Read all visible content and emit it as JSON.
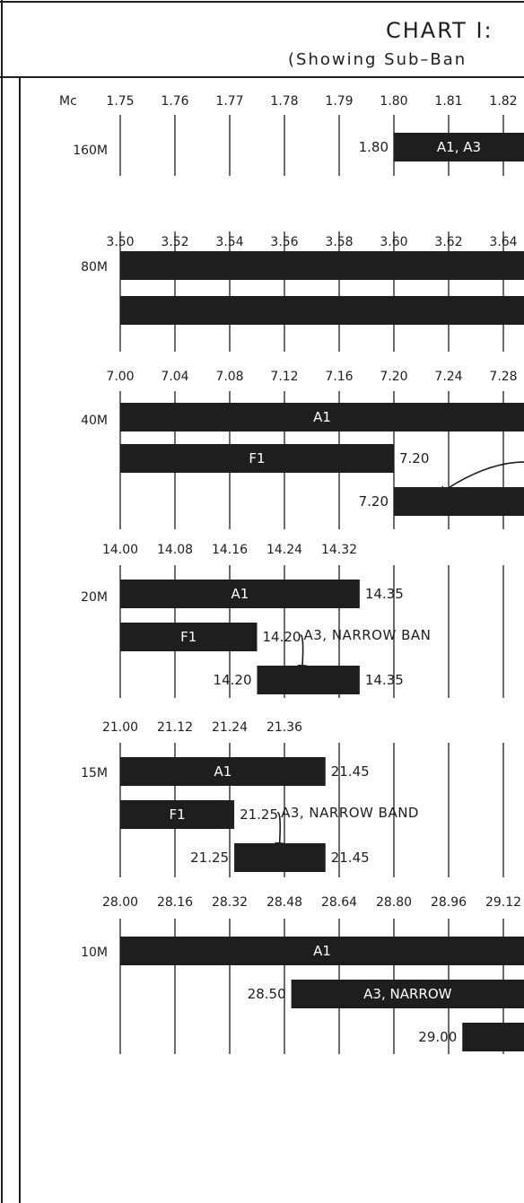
{
  "title": "CHART I:",
  "subtitle": "(Showing Sub–Ban",
  "colors": {
    "ink": "#1e1e1e",
    "paper": "#ffffff",
    "bar_text": "#ffffff"
  },
  "sections": [
    {
      "band": "160M",
      "freq_unit_label": "Mc",
      "axis": {
        "start": 1.75,
        "step": 0.01,
        "decimals": 2
      },
      "ticks": [
        "1.75",
        "1.76",
        "1.77",
        "1.78",
        "1.79",
        "1.80",
        "1.81",
        "1.82"
      ],
      "bars": [
        {
          "start": 1.8,
          "end": null,
          "label": "A1, A3",
          "start_label": "1.80",
          "end_label": ""
        }
      ],
      "notes": []
    },
    {
      "band": "80M",
      "axis": {
        "start": 3.5,
        "step": 0.02,
        "decimals": 2
      },
      "ticks": [
        "3.50",
        "3.52",
        "3.54",
        "3.56",
        "3.58",
        "3.60",
        "3.62",
        "3.64"
      ],
      "bars": [
        {
          "start": 3.5,
          "end": null,
          "label": "",
          "start_label": "",
          "end_label": ""
        },
        {
          "start": 3.5,
          "end": null,
          "label": "",
          "start_label": "",
          "end_label": ""
        }
      ],
      "notes": []
    },
    {
      "band": "40M",
      "axis": {
        "start": 7.0,
        "step": 0.04,
        "decimals": 2
      },
      "ticks": [
        "7.00",
        "7.04",
        "7.08",
        "7.12",
        "7.16",
        "7.20",
        "7.24",
        "7.28"
      ],
      "bars": [
        {
          "start": 7.0,
          "end": null,
          "label": "A1",
          "start_label": "",
          "end_label": ""
        },
        {
          "start": 7.0,
          "end": 7.2,
          "label": "F1",
          "start_label": "",
          "end_label": "7.20"
        },
        {
          "start": 7.2,
          "end": null,
          "label": "",
          "start_label": "7.20",
          "end_label": ""
        }
      ],
      "notes": [
        {
          "text": "",
          "target_bar": 2
        }
      ]
    },
    {
      "band": "20M",
      "axis": {
        "start": 14.0,
        "step": 0.08,
        "decimals": 2
      },
      "ticks": [
        "14.00",
        "14.08",
        "14.16",
        "14.24",
        "14.32"
      ],
      "bars": [
        {
          "start": 14.0,
          "end": 14.35,
          "label": "A1",
          "start_label": "",
          "end_label": "14.35"
        },
        {
          "start": 14.0,
          "end": 14.2,
          "label": "F1",
          "start_label": "",
          "end_label": "14.20"
        },
        {
          "start": 14.2,
          "end": 14.35,
          "label": "",
          "start_label": "14.20",
          "end_label": "14.35"
        }
      ],
      "notes": [
        {
          "text": "A3, NARROW BAN",
          "target_bar": 2
        }
      ]
    },
    {
      "band": "15M",
      "axis": {
        "start": 21.0,
        "step": 0.12,
        "decimals": 2
      },
      "ticks": [
        "21.00",
        "21.12",
        "21.24",
        "21.36"
      ],
      "bars": [
        {
          "start": 21.0,
          "end": 21.45,
          "label": "A1",
          "start_label": "",
          "end_label": "21.45"
        },
        {
          "start": 21.0,
          "end": 21.25,
          "label": "F1",
          "start_label": "",
          "end_label": "21.25"
        },
        {
          "start": 21.25,
          "end": 21.45,
          "label": "",
          "start_label": "21.25",
          "end_label": "21.45"
        }
      ],
      "notes": [
        {
          "text": "A3, NARROW BAND",
          "target_bar": 2
        }
      ]
    },
    {
      "band": "10M",
      "axis": {
        "start": 28.0,
        "step": 0.16,
        "decimals": 2
      },
      "ticks": [
        "28.00",
        "28.16",
        "28.32",
        "28.48",
        "28.64",
        "28.80",
        "28.96",
        "29.12"
      ],
      "bars": [
        {
          "start": 28.0,
          "end": null,
          "label": "A1",
          "start_label": "",
          "end_label": ""
        },
        {
          "start": 28.5,
          "end": null,
          "label": "A3, NARROW",
          "start_label": "28.50",
          "end_label": ""
        },
        {
          "start": 29.0,
          "end": null,
          "label": "",
          "start_label": "29.00",
          "end_label": ""
        }
      ],
      "notes": []
    }
  ]
}
